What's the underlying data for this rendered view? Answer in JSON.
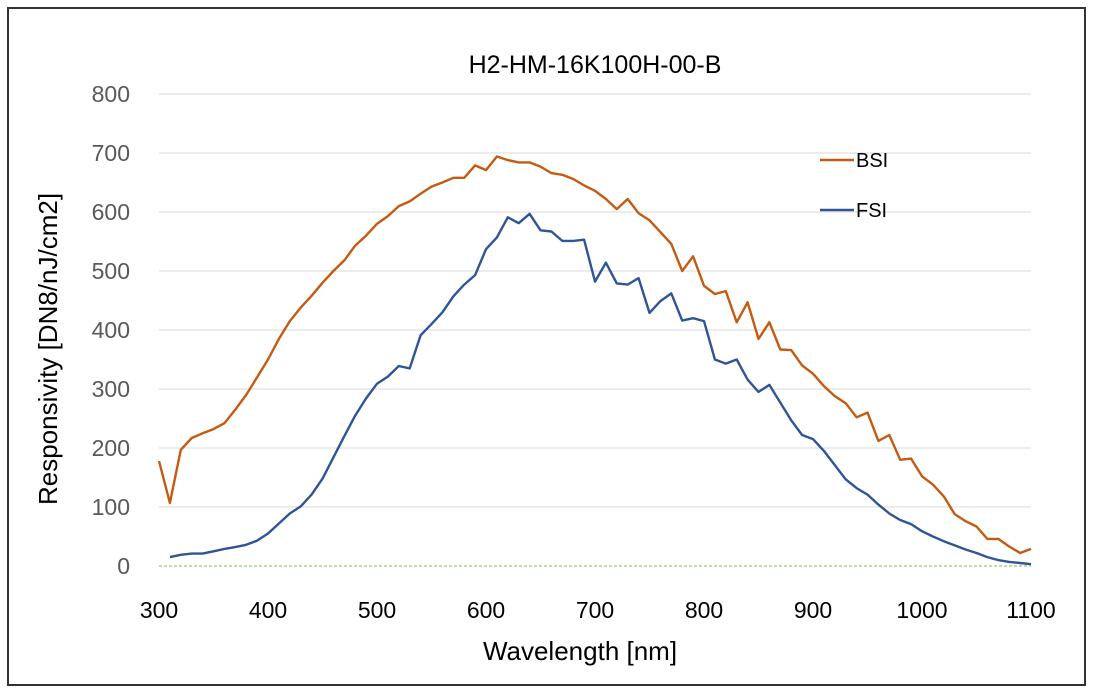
{
  "chart_data": {
    "type": "line",
    "title": "H2-HM-16K100H-00-B",
    "xlabel": "Wavelength [nm]",
    "ylabel": "Responsivity [DN8/nJ/cm2]",
    "xlim": [
      300,
      1100
    ],
    "ylim": [
      0,
      800
    ],
    "xticks": [
      300,
      400,
      500,
      600,
      700,
      800,
      900,
      1000,
      1100
    ],
    "yticks": [
      0,
      100,
      200,
      300,
      400,
      500,
      600,
      700,
      800
    ],
    "grid": true,
    "legend_position": "top-right",
    "series": [
      {
        "name": "BSI",
        "color": "#C55A11",
        "x": [
          300,
          310,
          320,
          330,
          340,
          350,
          360,
          370,
          380,
          390,
          400,
          410,
          420,
          430,
          440,
          450,
          460,
          470,
          480,
          490,
          500,
          510,
          520,
          530,
          540,
          550,
          560,
          570,
          580,
          590,
          600,
          610,
          620,
          630,
          640,
          650,
          660,
          670,
          680,
          690,
          700,
          710,
          720,
          730,
          740,
          750,
          760,
          770,
          780,
          790,
          800,
          810,
          820,
          830,
          840,
          850,
          860,
          870,
          880,
          890,
          900,
          910,
          920,
          930,
          940,
          950,
          960,
          970,
          980,
          990,
          1000,
          1010,
          1020,
          1030,
          1040,
          1050,
          1060,
          1070,
          1080,
          1090,
          1100
        ],
        "y": [
          178,
          107,
          197,
          217,
          225,
          232,
          242,
          265,
          290,
          320,
          350,
          385,
          415,
          438,
          458,
          480,
          500,
          518,
          543,
          560,
          580,
          593,
          610,
          618,
          631,
          643,
          650,
          658,
          658,
          679,
          671,
          694,
          688,
          684,
          684,
          677,
          666,
          663,
          656,
          645,
          636,
          622,
          605,
          622,
          598,
          586,
          566,
          546,
          500,
          525,
          475,
          461,
          466,
          413,
          447,
          385,
          413,
          367,
          366,
          340,
          326,
          305,
          288,
          276,
          252,
          260,
          212,
          222,
          180,
          182,
          152,
          138,
          118,
          88,
          76,
          67,
          46,
          46,
          33,
          22,
          29
        ]
      },
      {
        "name": "FSI",
        "color": "#2F5597",
        "x": [
          310,
          320,
          330,
          340,
          350,
          360,
          370,
          380,
          390,
          400,
          410,
          420,
          430,
          440,
          450,
          460,
          470,
          480,
          490,
          500,
          510,
          520,
          530,
          540,
          550,
          560,
          570,
          580,
          590,
          600,
          610,
          620,
          630,
          640,
          650,
          660,
          670,
          680,
          690,
          700,
          710,
          720,
          730,
          740,
          750,
          760,
          770,
          780,
          790,
          800,
          810,
          820,
          830,
          840,
          850,
          860,
          870,
          880,
          890,
          900,
          910,
          920,
          930,
          940,
          950,
          960,
          970,
          980,
          990,
          1000,
          1010,
          1020,
          1030,
          1040,
          1050,
          1060,
          1070,
          1080,
          1090,
          1100
        ],
        "y": [
          15,
          19,
          21,
          21,
          25,
          29,
          32,
          36,
          43,
          55,
          72,
          89,
          101,
          121,
          148,
          184,
          220,
          255,
          284,
          309,
          321,
          339,
          335,
          391,
          410,
          430,
          457,
          477,
          493,
          537,
          557,
          591,
          581,
          597,
          569,
          567,
          551,
          551,
          553,
          482,
          514,
          479,
          477,
          488,
          429,
          449,
          462,
          416,
          420,
          415,
          350,
          343,
          350,
          316,
          295,
          307,
          277,
          247,
          222,
          215,
          195,
          171,
          147,
          132,
          121,
          104,
          89,
          78,
          71,
          59,
          50,
          42,
          35,
          28,
          22,
          15,
          10,
          7,
          5,
          3
        ]
      }
    ],
    "baseline_color": "#A9D18E"
  }
}
